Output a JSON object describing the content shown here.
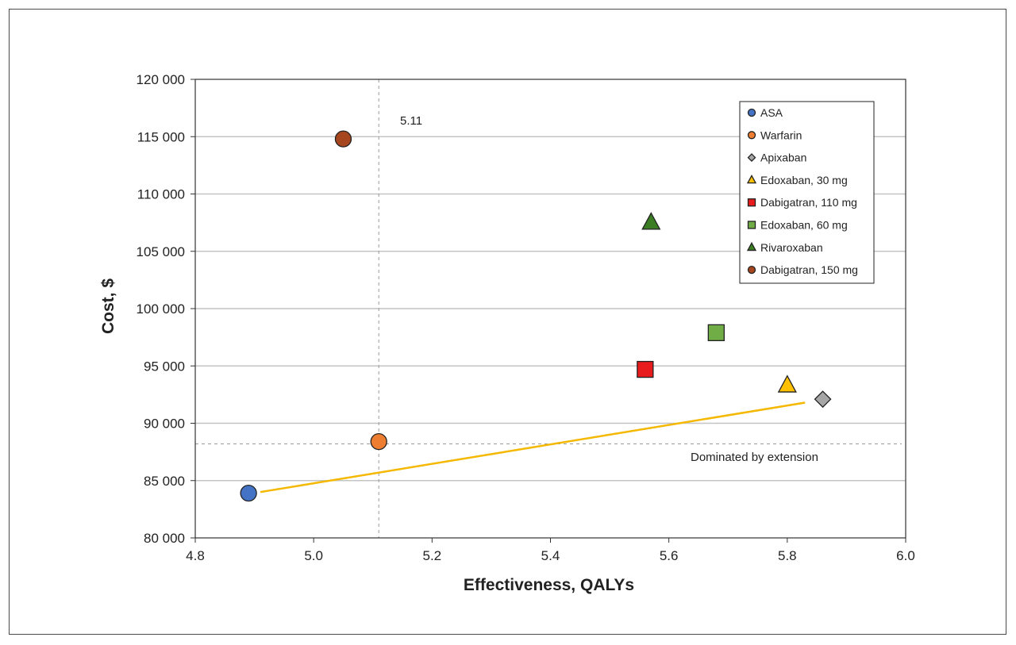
{
  "chart_data": {
    "type": "scatter",
    "xlabel": "Effectiveness, QALYs",
    "ylabel": "Cost, $",
    "xlim": [
      4.8,
      6.0
    ],
    "ylim": [
      80000,
      120000
    ],
    "x_ticks": [
      4.8,
      5.0,
      5.2,
      5.4,
      5.6,
      5.8,
      6.0
    ],
    "x_tick_labels": [
      "4.8",
      "5.0",
      "5.2",
      "5.4",
      "5.6",
      "5.8",
      "6.0"
    ],
    "y_ticks": [
      80000,
      85000,
      90000,
      95000,
      100000,
      105000,
      110000,
      115000,
      120000
    ],
    "y_tick_labels": [
      "80 000",
      "85 000",
      "90 000",
      "95 000",
      "100 000",
      "105 000",
      "110 000",
      "115 000",
      "120 000"
    ],
    "grid": "horizontal",
    "legend_position": "top-right",
    "series": [
      {
        "name": "ASA",
        "marker": "circle",
        "color": "#4472c4",
        "x": 4.89,
        "y": 83900
      },
      {
        "name": "Warfarin",
        "marker": "circle",
        "color": "#ed7d31",
        "x": 5.11,
        "y": 88400
      },
      {
        "name": "Apixaban",
        "marker": "diamond",
        "color": "#a6a6a6",
        "x": 5.86,
        "y": 92100
      },
      {
        "name": "Edoxaban, 30 mg",
        "marker": "triangle",
        "color": "#ffc000",
        "x": 5.8,
        "y": 93300
      },
      {
        "name": "Dabigatran, 110 mg",
        "marker": "square",
        "color": "#e81c1c",
        "x": 5.56,
        "y": 94700
      },
      {
        "name": "Edoxaban, 60 mg",
        "marker": "square",
        "color": "#70ad47",
        "x": 5.68,
        "y": 97900
      },
      {
        "name": "Rivaroxaban",
        "marker": "triangle",
        "color": "#3a7d22",
        "x": 5.57,
        "y": 107500
      },
      {
        "name": "Dabigatran, 150 mg",
        "marker": "circle",
        "color": "#a5461e",
        "x": 5.05,
        "y": 114800
      }
    ],
    "efficiency_frontier": {
      "color": "#f5b800",
      "points": [
        [
          4.91,
          84000
        ],
        [
          5.83,
          91800
        ]
      ]
    },
    "reference_lines": {
      "vertical": {
        "x": 5.11,
        "label": "5.11"
      },
      "horizontal": {
        "y": 88200,
        "label": "Dominated by extension"
      }
    }
  }
}
